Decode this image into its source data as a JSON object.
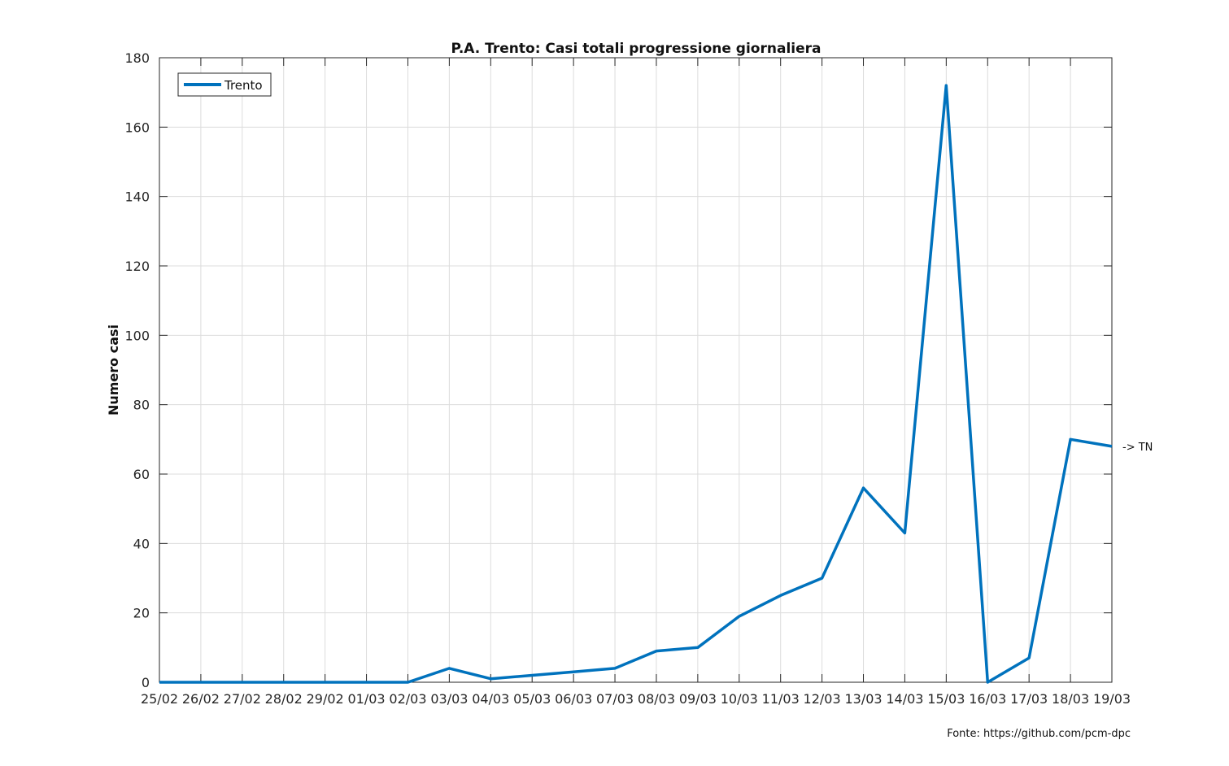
{
  "chart_data": {
    "type": "line",
    "title": "P.A. Trento: Casi totali progressione giornaliera",
    "xlabel": "",
    "ylabel": "Numero casi",
    "categories": [
      "25/02",
      "26/02",
      "27/02",
      "28/02",
      "29/02",
      "01/03",
      "02/03",
      "03/03",
      "04/03",
      "05/03",
      "06/03",
      "07/03",
      "08/03",
      "09/03",
      "10/03",
      "11/03",
      "12/03",
      "13/03",
      "14/03",
      "15/03",
      "16/03",
      "17/03",
      "18/03",
      "19/03"
    ],
    "series": [
      {
        "name": "Trento",
        "color": "#0072bd",
        "values": [
          0,
          0,
          0,
          0,
          0,
          0,
          0,
          4,
          1,
          2,
          3,
          4,
          9,
          10,
          19,
          25,
          30,
          56,
          43,
          172,
          0,
          7,
          70,
          68
        ]
      }
    ],
    "ylim": [
      0,
      180
    ],
    "yticks": [
      0,
      20,
      40,
      60,
      80,
      100,
      120,
      140,
      160,
      180
    ],
    "grid": true,
    "legend_position": "top-left",
    "end_annotation": "-> TN",
    "source_note": "Fonte: https://github.com/pcm-dpc"
  }
}
